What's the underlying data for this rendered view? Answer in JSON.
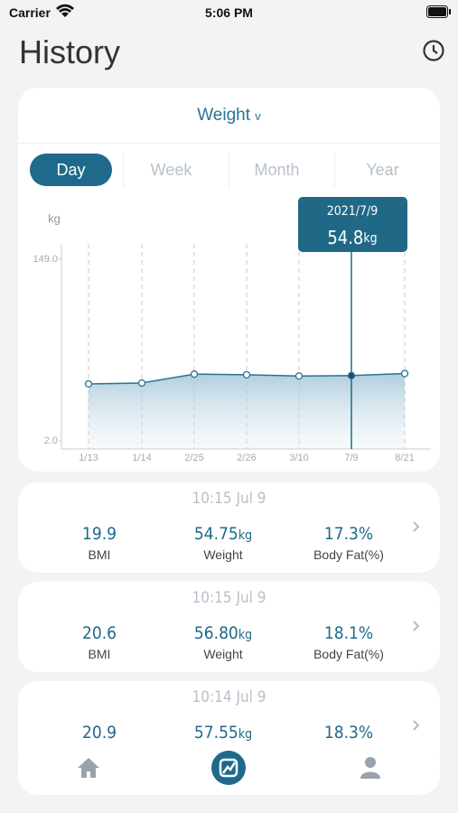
{
  "status_bar": {
    "carrier": "Carrier",
    "time": "5:06 PM"
  },
  "header": {
    "title": "History"
  },
  "selector": {
    "label": "Weight",
    "caret": "v"
  },
  "tabs": [
    "Day",
    "Week",
    "Month",
    "Year"
  ],
  "chart_data": {
    "type": "line",
    "y_unit": "kg",
    "categories": [
      "1/13",
      "1/14",
      "2/25",
      "2/26",
      "3/10",
      "7/9",
      "8/21"
    ],
    "values": [
      48.1,
      48.8,
      56.0,
      55.5,
      54.5,
      54.8,
      56.5
    ],
    "color": "#2b7295",
    "ylim": [
      2,
      149
    ],
    "yticks": [
      {
        "value": 2,
        "label": "2.0"
      },
      {
        "value": 149,
        "label": "149.0"
      }
    ],
    "tooltip": {
      "date": "2021/7/9"
    }
  },
  "record_labels": [
    "BMI",
    "Weight",
    "Body Fat(%)"
  ],
  "records": [
    {
      "time": "10:15 Jul 9",
      "bmi": "19.9",
      "weight": "54.75",
      "unit": "kg",
      "fat": "17.3%"
    },
    {
      "time": "10:15 Jul 9",
      "bmi": "20.6",
      "weight": "56.80",
      "unit": "kg",
      "fat": "18.1%"
    },
    {
      "time": "10:14 Jul 9",
      "bmi": "20.9",
      "weight": "57.55",
      "unit": "kg",
      "fat": "18.3%"
    }
  ]
}
